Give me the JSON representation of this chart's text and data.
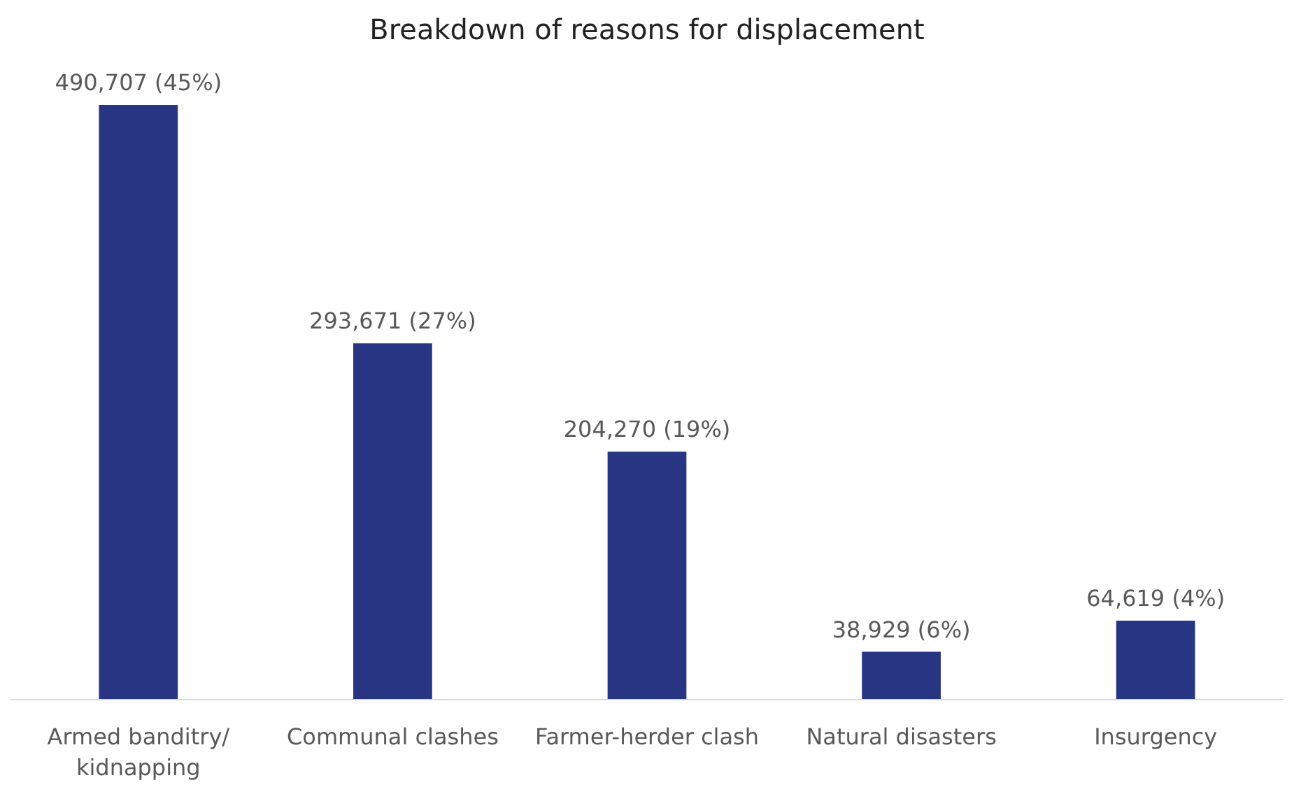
{
  "chart_data": {
    "type": "bar",
    "title": "Breakdown of reasons for displacement",
    "categories": [
      "Armed banditry/kidnapping",
      "Communal clashes",
      "Farmer-herder clash",
      "Natural disasters",
      "Insurgency"
    ],
    "values": [
      490707,
      293671,
      204270,
      38929,
      64619
    ],
    "value_labels": [
      "490,707 (45%)",
      "293,671 (27%)",
      "204,270 (19%)",
      "38,929 (6%)",
      "64,619 (4%)"
    ],
    "color": "#283583"
  }
}
